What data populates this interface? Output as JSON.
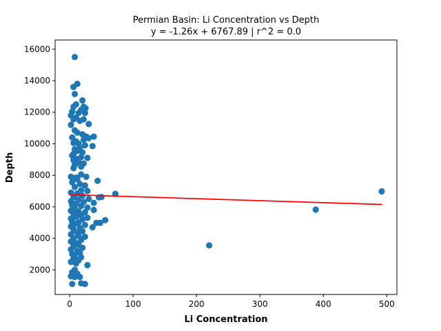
{
  "chart_data": {
    "type": "scatter",
    "title_line1": "Permian Basin: Li Concentration vs Depth",
    "title_line2": "y = -1.26x + 6767.89 | r^2 = 0.0",
    "xlabel": "Li Concentration",
    "ylabel": "Depth",
    "xlim": [
      -23,
      516
    ],
    "ylim": [
      440,
      16580
    ],
    "xticks": [
      0,
      100,
      200,
      300,
      400,
      500
    ],
    "yticks": [
      2000,
      4000,
      6000,
      8000,
      10000,
      12000,
      14000,
      16000
    ],
    "grid": false,
    "point_color": "#1f77b4",
    "line_color": "#ff0000",
    "regression": {
      "slope": -1.26,
      "intercept": 6767.89,
      "x_start": 0,
      "x_end": 493
    },
    "points": [
      [
        8,
        15500
      ],
      [
        12,
        13800
      ],
      [
        6,
        13600
      ],
      [
        8,
        13150
      ],
      [
        20,
        12750
      ],
      [
        10,
        12500
      ],
      [
        6,
        12350
      ],
      [
        22,
        12350
      ],
      [
        25,
        12250
      ],
      [
        18,
        12150
      ],
      [
        4,
        12050
      ],
      [
        14,
        11950
      ],
      [
        24,
        11950
      ],
      [
        2,
        11800
      ],
      [
        10,
        11650
      ],
      [
        6,
        11550
      ],
      [
        16,
        11450
      ],
      [
        22,
        11550
      ],
      [
        30,
        11250
      ],
      [
        2,
        11200
      ],
      [
        8,
        10850
      ],
      [
        12,
        10700
      ],
      [
        20,
        10600
      ],
      [
        26,
        10450
      ],
      [
        4,
        10400
      ],
      [
        38,
        10450
      ],
      [
        30,
        10350
      ],
      [
        22,
        10250
      ],
      [
        10,
        10150
      ],
      [
        6,
        10050
      ],
      [
        14,
        10000
      ],
      [
        24,
        9900
      ],
      [
        36,
        9850
      ],
      [
        16,
        9750
      ],
      [
        8,
        9650
      ],
      [
        12,
        9550
      ],
      [
        20,
        9450
      ],
      [
        6,
        9350
      ],
      [
        4,
        9250
      ],
      [
        18,
        9150
      ],
      [
        28,
        9100
      ],
      [
        10,
        9050
      ],
      [
        6,
        8950
      ],
      [
        14,
        8850
      ],
      [
        22,
        8750
      ],
      [
        8,
        8650
      ],
      [
        18,
        8550
      ],
      [
        6,
        8450
      ],
      [
        2,
        7900
      ],
      [
        10,
        7850
      ],
      [
        18,
        8050
      ],
      [
        26,
        7900
      ],
      [
        12,
        7750
      ],
      [
        44,
        7650
      ],
      [
        4,
        7550
      ],
      [
        16,
        7450
      ],
      [
        24,
        7350
      ],
      [
        8,
        7250
      ],
      [
        18,
        7050
      ],
      [
        28,
        7000
      ],
      [
        2,
        6900
      ],
      [
        12,
        6850
      ],
      [
        72,
        6820
      ],
      [
        46,
        6600
      ],
      [
        50,
        6620
      ],
      [
        20,
        6700
      ],
      [
        6,
        6600
      ],
      [
        30,
        6500
      ],
      [
        14,
        6450
      ],
      [
        2,
        6350
      ],
      [
        22,
        6300
      ],
      [
        10,
        6200
      ],
      [
        38,
        6250
      ],
      [
        4,
        6100
      ],
      [
        18,
        6050
      ],
      [
        28,
        5950
      ],
      [
        8,
        5900
      ],
      [
        38,
        5800
      ],
      [
        2,
        5750
      ],
      [
        14,
        5700
      ],
      [
        24,
        5650
      ],
      [
        6,
        5550
      ],
      [
        18,
        5450
      ],
      [
        10,
        5350
      ],
      [
        28,
        5300
      ],
      [
        2,
        5250
      ],
      [
        20,
        5200
      ],
      [
        56,
        5150
      ],
      [
        4,
        5050
      ],
      [
        14,
        5000
      ],
      [
        42,
        4980
      ],
      [
        48,
        4980
      ],
      [
        8,
        4900
      ],
      [
        24,
        4850
      ],
      [
        2,
        4750
      ],
      [
        36,
        4700
      ],
      [
        16,
        4650
      ],
      [
        6,
        4550
      ],
      [
        20,
        4450
      ],
      [
        12,
        4350
      ],
      [
        2,
        4250
      ],
      [
        14,
        4150
      ],
      [
        24,
        4100
      ],
      [
        6,
        4000
      ],
      [
        18,
        3900
      ],
      [
        2,
        3800
      ],
      [
        10,
        3700
      ],
      [
        14,
        3600
      ],
      [
        220,
        3550
      ],
      [
        6,
        3500
      ],
      [
        20,
        3400
      ],
      [
        2,
        3300
      ],
      [
        12,
        3200
      ],
      [
        16,
        3100
      ],
      [
        4,
        3000
      ],
      [
        8,
        2900
      ],
      [
        18,
        2800
      ],
      [
        6,
        2700
      ],
      [
        14,
        2600
      ],
      [
        2,
        2500
      ],
      [
        28,
        2300
      ],
      [
        10,
        2400
      ],
      [
        8,
        2000
      ],
      [
        4,
        1850
      ],
      [
        12,
        1750
      ],
      [
        2,
        1600
      ],
      [
        8,
        1550
      ],
      [
        16,
        1550
      ],
      [
        4,
        1100
      ],
      [
        18,
        1150
      ],
      [
        24,
        1100
      ],
      [
        388,
        5820
      ],
      [
        492,
        6980
      ]
    ]
  }
}
